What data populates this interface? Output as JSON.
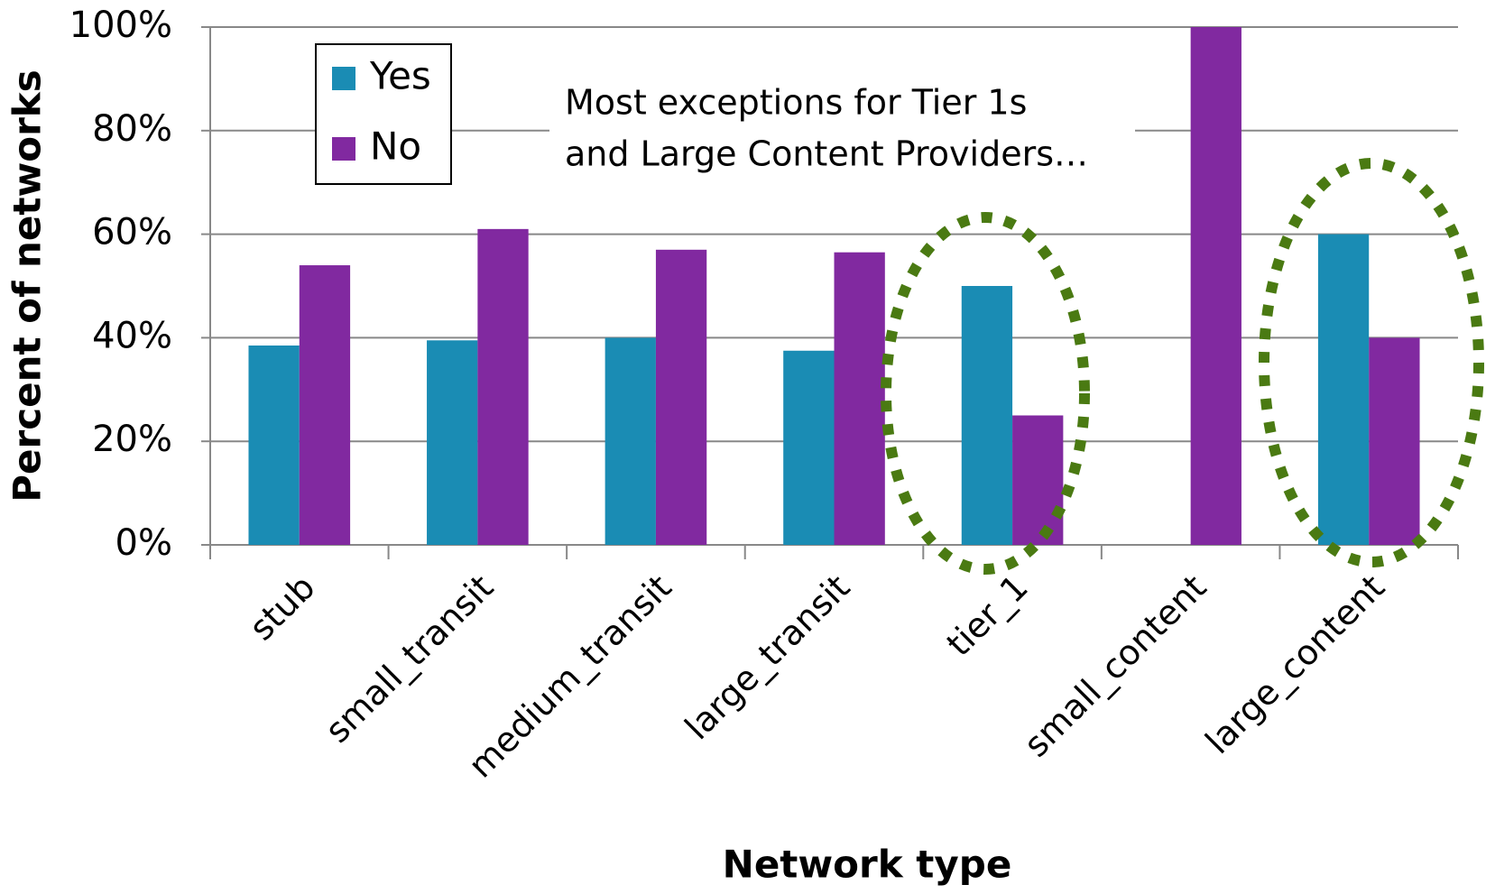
{
  "chart_data": {
    "type": "bar",
    "x_label": "Network type",
    "y_label": "Percent of networks",
    "annotation": [
      "Most exceptions for Tier 1s",
      "and Large Content Providers…"
    ],
    "categories": [
      "stub",
      "small_transit",
      "medium_transit",
      "large_transit",
      "tier_1",
      "small_content",
      "large_content"
    ],
    "series": [
      {
        "name": "Yes",
        "color": "#1a8cb4",
        "values": [
          38.5,
          39.5,
          40,
          37.5,
          50,
          0,
          60
        ]
      },
      {
        "name": "No",
        "color": "#8129a0",
        "values": [
          54,
          61,
          57,
          56.5,
          25,
          100,
          40
        ]
      }
    ],
    "ylim": [
      0,
      100
    ],
    "yticks": [
      {
        "value": 0,
        "label": "0%"
      },
      {
        "value": 20,
        "label": "20%"
      },
      {
        "value": 40,
        "label": "40%"
      },
      {
        "value": 60,
        "label": "60%"
      },
      {
        "value": 80,
        "label": "80%"
      },
      {
        "value": 100,
        "label": "100%"
      }
    ],
    "grid": true,
    "legend": "upper left"
  }
}
